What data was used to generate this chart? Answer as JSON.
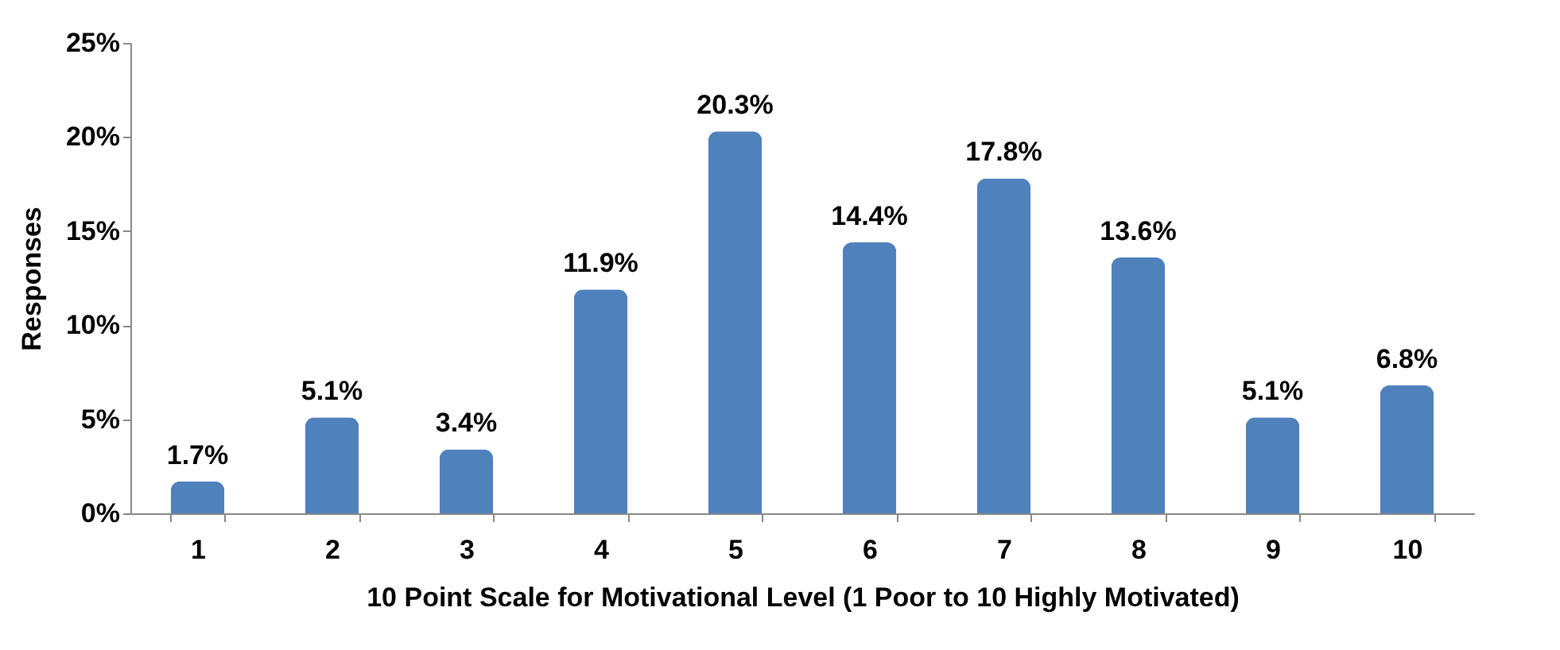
{
  "chart_data": {
    "type": "bar",
    "xlabel": "10 Point Scale for Motivational Level (1 Poor to 10 Highly Motivated)",
    "ylabel": "Responses",
    "categories": [
      "1",
      "2",
      "3",
      "4",
      "5",
      "6",
      "7",
      "8",
      "9",
      "10"
    ],
    "values": [
      1.7,
      5.1,
      3.4,
      11.9,
      20.3,
      14.4,
      17.8,
      13.6,
      5.1,
      6.8
    ],
    "value_labels": [
      "1.7%",
      "5.1%",
      "3.4%",
      "11.9%",
      "20.3%",
      "14.4%",
      "17.8%",
      "13.6%",
      "5.1%",
      "6.8%"
    ],
    "color": "#4f81bd",
    "ylim": [
      0,
      25
    ],
    "yticks": [
      {
        "value": 0,
        "label": "0%"
      },
      {
        "value": 5,
        "label": "5%"
      },
      {
        "value": 10,
        "label": "10%"
      },
      {
        "value": 15,
        "label": "15%"
      },
      {
        "value": 20,
        "label": "20%"
      },
      {
        "value": 25,
        "label": "25%"
      }
    ]
  }
}
